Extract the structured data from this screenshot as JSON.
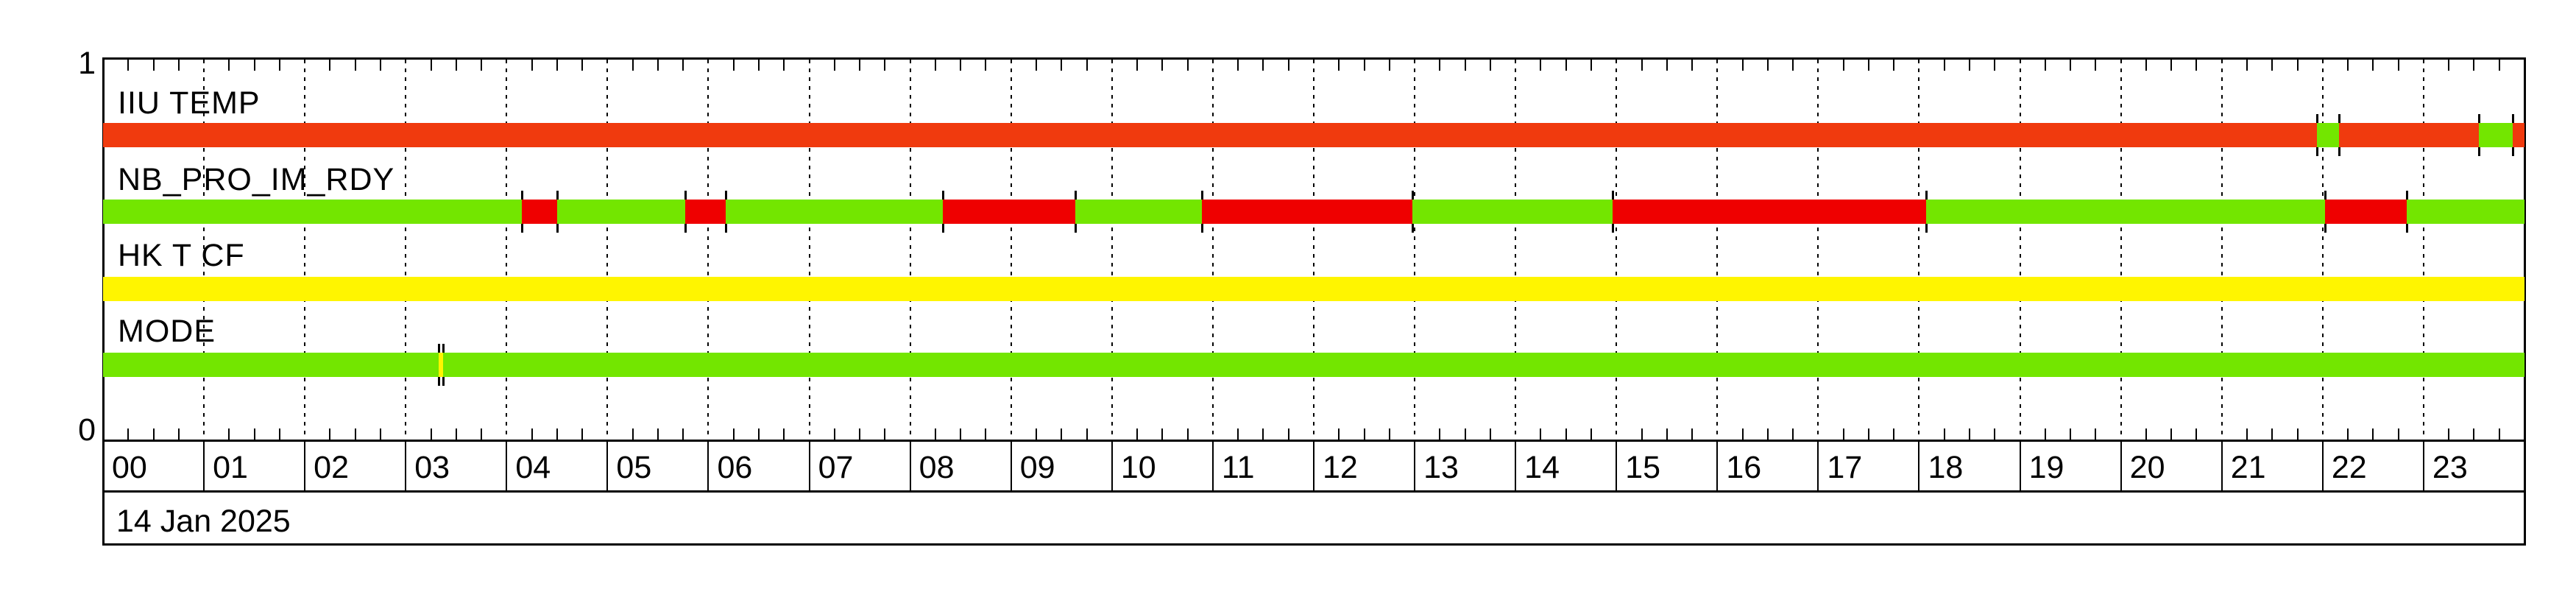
{
  "chart_data": {
    "type": "timeline-status",
    "title": "",
    "date_label": "14 Jan 2025",
    "x_axis": {
      "unit": "hours",
      "start": 0,
      "end": 24,
      "hour_labels": [
        "00",
        "01",
        "02",
        "03",
        "04",
        "05",
        "06",
        "07",
        "08",
        "09",
        "10",
        "11",
        "12",
        "13",
        "14",
        "15",
        "16",
        "17",
        "18",
        "19",
        "20",
        "21",
        "22",
        "23"
      ],
      "minor_ticks_per_hour": 4,
      "gridlines": "dotted-vertical-每-hour"
    },
    "y_axis": {
      "top_label": "1",
      "bottom_label": "0"
    },
    "colors": {
      "green": "#73E600",
      "red": "#EF0000",
      "orange": "#F03A0E",
      "yellow": "#FFF500"
    },
    "series": [
      {
        "name": "IIU TEMP",
        "segments": [
          {
            "from": 0,
            "to": 21.94,
            "color": "orange"
          },
          {
            "from": 21.94,
            "to": 22.16,
            "color": "green"
          },
          {
            "from": 22.16,
            "to": 23.55,
            "color": "orange"
          },
          {
            "from": 23.55,
            "to": 23.88,
            "color": "green"
          },
          {
            "from": 23.88,
            "to": 24,
            "color": "orange"
          }
        ],
        "markers": [
          21.94,
          22.16,
          23.55,
          23.88
        ]
      },
      {
        "name": "NB_PRO_IM_RDY",
        "segments": [
          {
            "from": 0,
            "to": 4.15,
            "color": "green"
          },
          {
            "from": 4.15,
            "to": 4.5,
            "color": "red"
          },
          {
            "from": 4.5,
            "to": 5.77,
            "color": "green"
          },
          {
            "from": 5.77,
            "to": 6.17,
            "color": "red"
          },
          {
            "from": 6.17,
            "to": 8.32,
            "color": "green"
          },
          {
            "from": 8.32,
            "to": 9.64,
            "color": "red"
          },
          {
            "from": 9.64,
            "to": 10.89,
            "color": "green"
          },
          {
            "from": 10.89,
            "to": 12.98,
            "color": "red"
          },
          {
            "from": 12.98,
            "to": 14.96,
            "color": "green"
          },
          {
            "from": 14.96,
            "to": 18.07,
            "color": "red"
          },
          {
            "from": 18.07,
            "to": 22.02,
            "color": "green"
          },
          {
            "from": 22.02,
            "to": 22.83,
            "color": "red"
          },
          {
            "from": 22.83,
            "to": 24,
            "color": "green"
          }
        ],
        "markers": [
          4.15,
          4.5,
          5.77,
          6.17,
          8.32,
          9.64,
          10.89,
          12.98,
          14.96,
          18.07,
          22.02,
          22.83
        ]
      },
      {
        "name": "HK T CF",
        "segments": [
          {
            "from": 0,
            "to": 24,
            "color": "yellow"
          }
        ],
        "markers": []
      },
      {
        "name": "MODE",
        "segments": [
          {
            "from": 0,
            "to": 3.33,
            "color": "green"
          },
          {
            "from": 3.33,
            "to": 3.37,
            "color": "yellow"
          },
          {
            "from": 3.37,
            "to": 24,
            "color": "green"
          }
        ],
        "markers": [
          3.33,
          3.37
        ]
      }
    ]
  }
}
